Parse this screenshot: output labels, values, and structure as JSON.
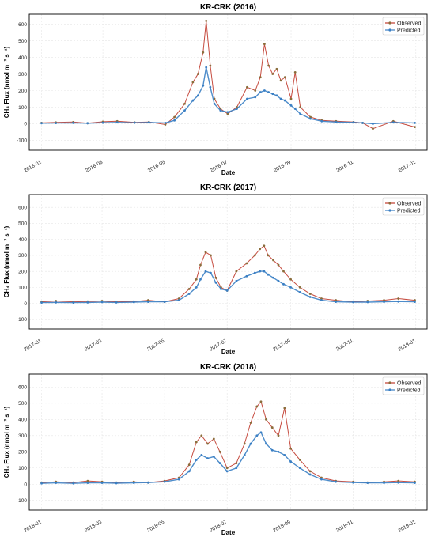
{
  "colors": {
    "observed": "#c0392b",
    "predicted": "#3a7fc4",
    "dot": "#8a6d3b",
    "grid": "#e6e6e6"
  },
  "chart_data": [
    {
      "type": "line",
      "title": "KR-CRK (2016)",
      "xlabel": "Date",
      "ylabel": "CH₄ Flux (nmol m⁻² s⁻¹)",
      "xlim": [
        "2015-12-20",
        "2017-01-12"
      ],
      "ylim": [
        -160,
        660
      ],
      "xticks": [
        "2016-01",
        "2016-03",
        "2016-05",
        "2016-07",
        "2016-09",
        "2016-11",
        "2017-01"
      ],
      "yticks": [
        -100,
        0,
        100,
        200,
        300,
        400,
        500,
        600
      ],
      "legend": "top-right",
      "grid": true,
      "series": [
        {
          "name": "Observed",
          "x": [
            "2016-01-01",
            "2016-01-15",
            "2016-02-01",
            "2016-02-15",
            "2016-03-01",
            "2016-03-15",
            "2016-04-01",
            "2016-04-15",
            "2016-05-01",
            "2016-05-10",
            "2016-05-20",
            "2016-05-28",
            "2016-06-02",
            "2016-06-07",
            "2016-06-10",
            "2016-06-14",
            "2016-06-18",
            "2016-06-24",
            "2016-07-01",
            "2016-07-10",
            "2016-07-20",
            "2016-07-28",
            "2016-08-02",
            "2016-08-06",
            "2016-08-10",
            "2016-08-14",
            "2016-08-18",
            "2016-08-22",
            "2016-08-26",
            "2016-09-01",
            "2016-09-05",
            "2016-09-10",
            "2016-09-20",
            "2016-10-01",
            "2016-10-15",
            "2016-11-01",
            "2016-11-10",
            "2016-11-20",
            "2016-12-10",
            "2016-12-31"
          ],
          "values": [
            5,
            8,
            10,
            3,
            12,
            15,
            8,
            10,
            -5,
            40,
            120,
            250,
            300,
            430,
            620,
            350,
            150,
            90,
            60,
            100,
            220,
            200,
            280,
            480,
            350,
            300,
            330,
            260,
            280,
            150,
            310,
            100,
            40,
            20,
            15,
            10,
            5,
            -30,
            15,
            -20
          ]
        },
        {
          "name": "Predicted",
          "x": [
            "2016-01-01",
            "2016-01-15",
            "2016-02-01",
            "2016-02-15",
            "2016-03-01",
            "2016-03-15",
            "2016-04-01",
            "2016-04-15",
            "2016-05-01",
            "2016-05-10",
            "2016-05-20",
            "2016-05-28",
            "2016-06-02",
            "2016-06-07",
            "2016-06-10",
            "2016-06-14",
            "2016-06-18",
            "2016-06-24",
            "2016-07-01",
            "2016-07-10",
            "2016-07-20",
            "2016-07-28",
            "2016-08-02",
            "2016-08-06",
            "2016-08-10",
            "2016-08-14",
            "2016-08-18",
            "2016-08-22",
            "2016-08-26",
            "2016-09-01",
            "2016-09-05",
            "2016-09-10",
            "2016-09-20",
            "2016-10-01",
            "2016-10-15",
            "2016-11-01",
            "2016-11-10",
            "2016-11-20",
            "2016-12-10",
            "2016-12-31"
          ],
          "values": [
            3,
            4,
            5,
            3,
            6,
            8,
            6,
            8,
            5,
            20,
            80,
            140,
            170,
            230,
            340,
            220,
            120,
            80,
            70,
            90,
            150,
            160,
            190,
            200,
            190,
            180,
            170,
            150,
            140,
            110,
            90,
            60,
            30,
            15,
            10,
            8,
            5,
            0,
            8,
            5
          ]
        }
      ]
    },
    {
      "type": "line",
      "title": "KR-CRK (2017)",
      "xlabel": "Date",
      "ylabel": "CH₄ Flux (nmol m⁻² s⁻¹)",
      "xlim": [
        "2016-12-20",
        "2018-01-12"
      ],
      "ylim": [
        -160,
        680
      ],
      "xticks": [
        "2017-01",
        "2017-03",
        "2017-05",
        "2017-07",
        "2017-09",
        "2017-11",
        "2018-01"
      ],
      "yticks": [
        -100,
        0,
        100,
        200,
        300,
        400,
        500,
        600
      ],
      "legend": "top-right",
      "grid": true,
      "series": [
        {
          "name": "Observed",
          "x": [
            "2017-01-01",
            "2017-01-15",
            "2017-02-01",
            "2017-02-15",
            "2017-03-01",
            "2017-03-15",
            "2017-04-01",
            "2017-04-15",
            "2017-05-01",
            "2017-05-15",
            "2017-05-25",
            "2017-06-01",
            "2017-06-05",
            "2017-06-10",
            "2017-06-15",
            "2017-06-20",
            "2017-06-25",
            "2017-07-01",
            "2017-07-10",
            "2017-07-20",
            "2017-07-28",
            "2017-08-02",
            "2017-08-06",
            "2017-08-10",
            "2017-08-15",
            "2017-08-20",
            "2017-08-25",
            "2017-09-01",
            "2017-09-10",
            "2017-09-20",
            "2017-10-01",
            "2017-10-15",
            "2017-11-01",
            "2017-11-15",
            "2017-12-01",
            "2017-12-15",
            "2017-12-31"
          ],
          "values": [
            10,
            15,
            10,
            12,
            15,
            10,
            12,
            20,
            10,
            30,
            90,
            150,
            240,
            320,
            300,
            160,
            100,
            80,
            200,
            250,
            300,
            340,
            360,
            300,
            270,
            240,
            200,
            150,
            100,
            60,
            30,
            20,
            10,
            15,
            20,
            30,
            20
          ]
        },
        {
          "name": "Predicted",
          "x": [
            "2017-01-01",
            "2017-01-15",
            "2017-02-01",
            "2017-02-15",
            "2017-03-01",
            "2017-03-15",
            "2017-04-01",
            "2017-04-15",
            "2017-05-01",
            "2017-05-15",
            "2017-05-25",
            "2017-06-01",
            "2017-06-05",
            "2017-06-10",
            "2017-06-15",
            "2017-06-20",
            "2017-06-25",
            "2017-07-01",
            "2017-07-10",
            "2017-07-20",
            "2017-07-28",
            "2017-08-02",
            "2017-08-06",
            "2017-08-10",
            "2017-08-15",
            "2017-08-20",
            "2017-08-25",
            "2017-09-01",
            "2017-09-10",
            "2017-09-20",
            "2017-10-01",
            "2017-10-15",
            "2017-11-01",
            "2017-11-15",
            "2017-12-01",
            "2017-12-15",
            "2017-12-31"
          ],
          "values": [
            5,
            6,
            5,
            6,
            8,
            6,
            8,
            10,
            10,
            20,
            60,
            100,
            150,
            200,
            190,
            130,
            90,
            80,
            140,
            170,
            190,
            200,
            200,
            180,
            160,
            140,
            120,
            100,
            70,
            40,
            20,
            10,
            8,
            8,
            10,
            12,
            10
          ]
        }
      ]
    },
    {
      "type": "line",
      "title": "KR-CRK (2018)",
      "xlabel": "Date",
      "ylabel": "CH₄ Flux (nmol m⁻² s⁻¹)",
      "xlim": [
        "2017-12-20",
        "2019-01-12"
      ],
      "ylim": [
        -160,
        680
      ],
      "xticks": [
        "2018-01",
        "2018-03",
        "2018-05",
        "2018-07",
        "2018-09",
        "2018-11",
        "2019-01"
      ],
      "yticks": [
        -100,
        0,
        100,
        200,
        300,
        400,
        500,
        600
      ],
      "legend": "top-right",
      "grid": true,
      "series": [
        {
          "name": "Observed",
          "x": [
            "2018-01-01",
            "2018-01-15",
            "2018-02-01",
            "2018-02-15",
            "2018-03-01",
            "2018-03-15",
            "2018-04-01",
            "2018-04-15",
            "2018-05-01",
            "2018-05-15",
            "2018-05-25",
            "2018-06-01",
            "2018-06-06",
            "2018-06-12",
            "2018-06-18",
            "2018-06-24",
            "2018-07-01",
            "2018-07-10",
            "2018-07-18",
            "2018-07-24",
            "2018-07-30",
            "2018-08-03",
            "2018-08-08",
            "2018-08-14",
            "2018-08-20",
            "2018-08-26",
            "2018-09-01",
            "2018-09-10",
            "2018-09-20",
            "2018-10-01",
            "2018-10-15",
            "2018-11-01",
            "2018-11-15",
            "2018-12-01",
            "2018-12-15",
            "2018-12-31"
          ],
          "values": [
            10,
            15,
            10,
            20,
            15,
            10,
            15,
            10,
            20,
            40,
            120,
            260,
            300,
            250,
            280,
            200,
            100,
            130,
            250,
            380,
            480,
            510,
            400,
            350,
            300,
            470,
            220,
            150,
            80,
            40,
            20,
            15,
            10,
            15,
            20,
            15
          ]
        },
        {
          "name": "Predicted",
          "x": [
            "2018-01-01",
            "2018-01-15",
            "2018-02-01",
            "2018-02-15",
            "2018-03-01",
            "2018-03-15",
            "2018-04-01",
            "2018-04-15",
            "2018-05-01",
            "2018-05-15",
            "2018-05-25",
            "2018-06-01",
            "2018-06-06",
            "2018-06-12",
            "2018-06-18",
            "2018-06-24",
            "2018-07-01",
            "2018-07-10",
            "2018-07-18",
            "2018-07-24",
            "2018-07-30",
            "2018-08-03",
            "2018-08-08",
            "2018-08-14",
            "2018-08-20",
            "2018-08-26",
            "2018-09-01",
            "2018-09-10",
            "2018-09-20",
            "2018-10-01",
            "2018-10-15",
            "2018-11-01",
            "2018-11-15",
            "2018-12-01",
            "2018-12-15",
            "2018-12-31"
          ],
          "values": [
            5,
            8,
            5,
            8,
            8,
            6,
            8,
            10,
            15,
            30,
            80,
            150,
            180,
            160,
            170,
            130,
            80,
            100,
            180,
            250,
            300,
            320,
            250,
            210,
            200,
            180,
            140,
            100,
            60,
            30,
            15,
            10,
            8,
            8,
            10,
            8
          ]
        }
      ]
    }
  ]
}
